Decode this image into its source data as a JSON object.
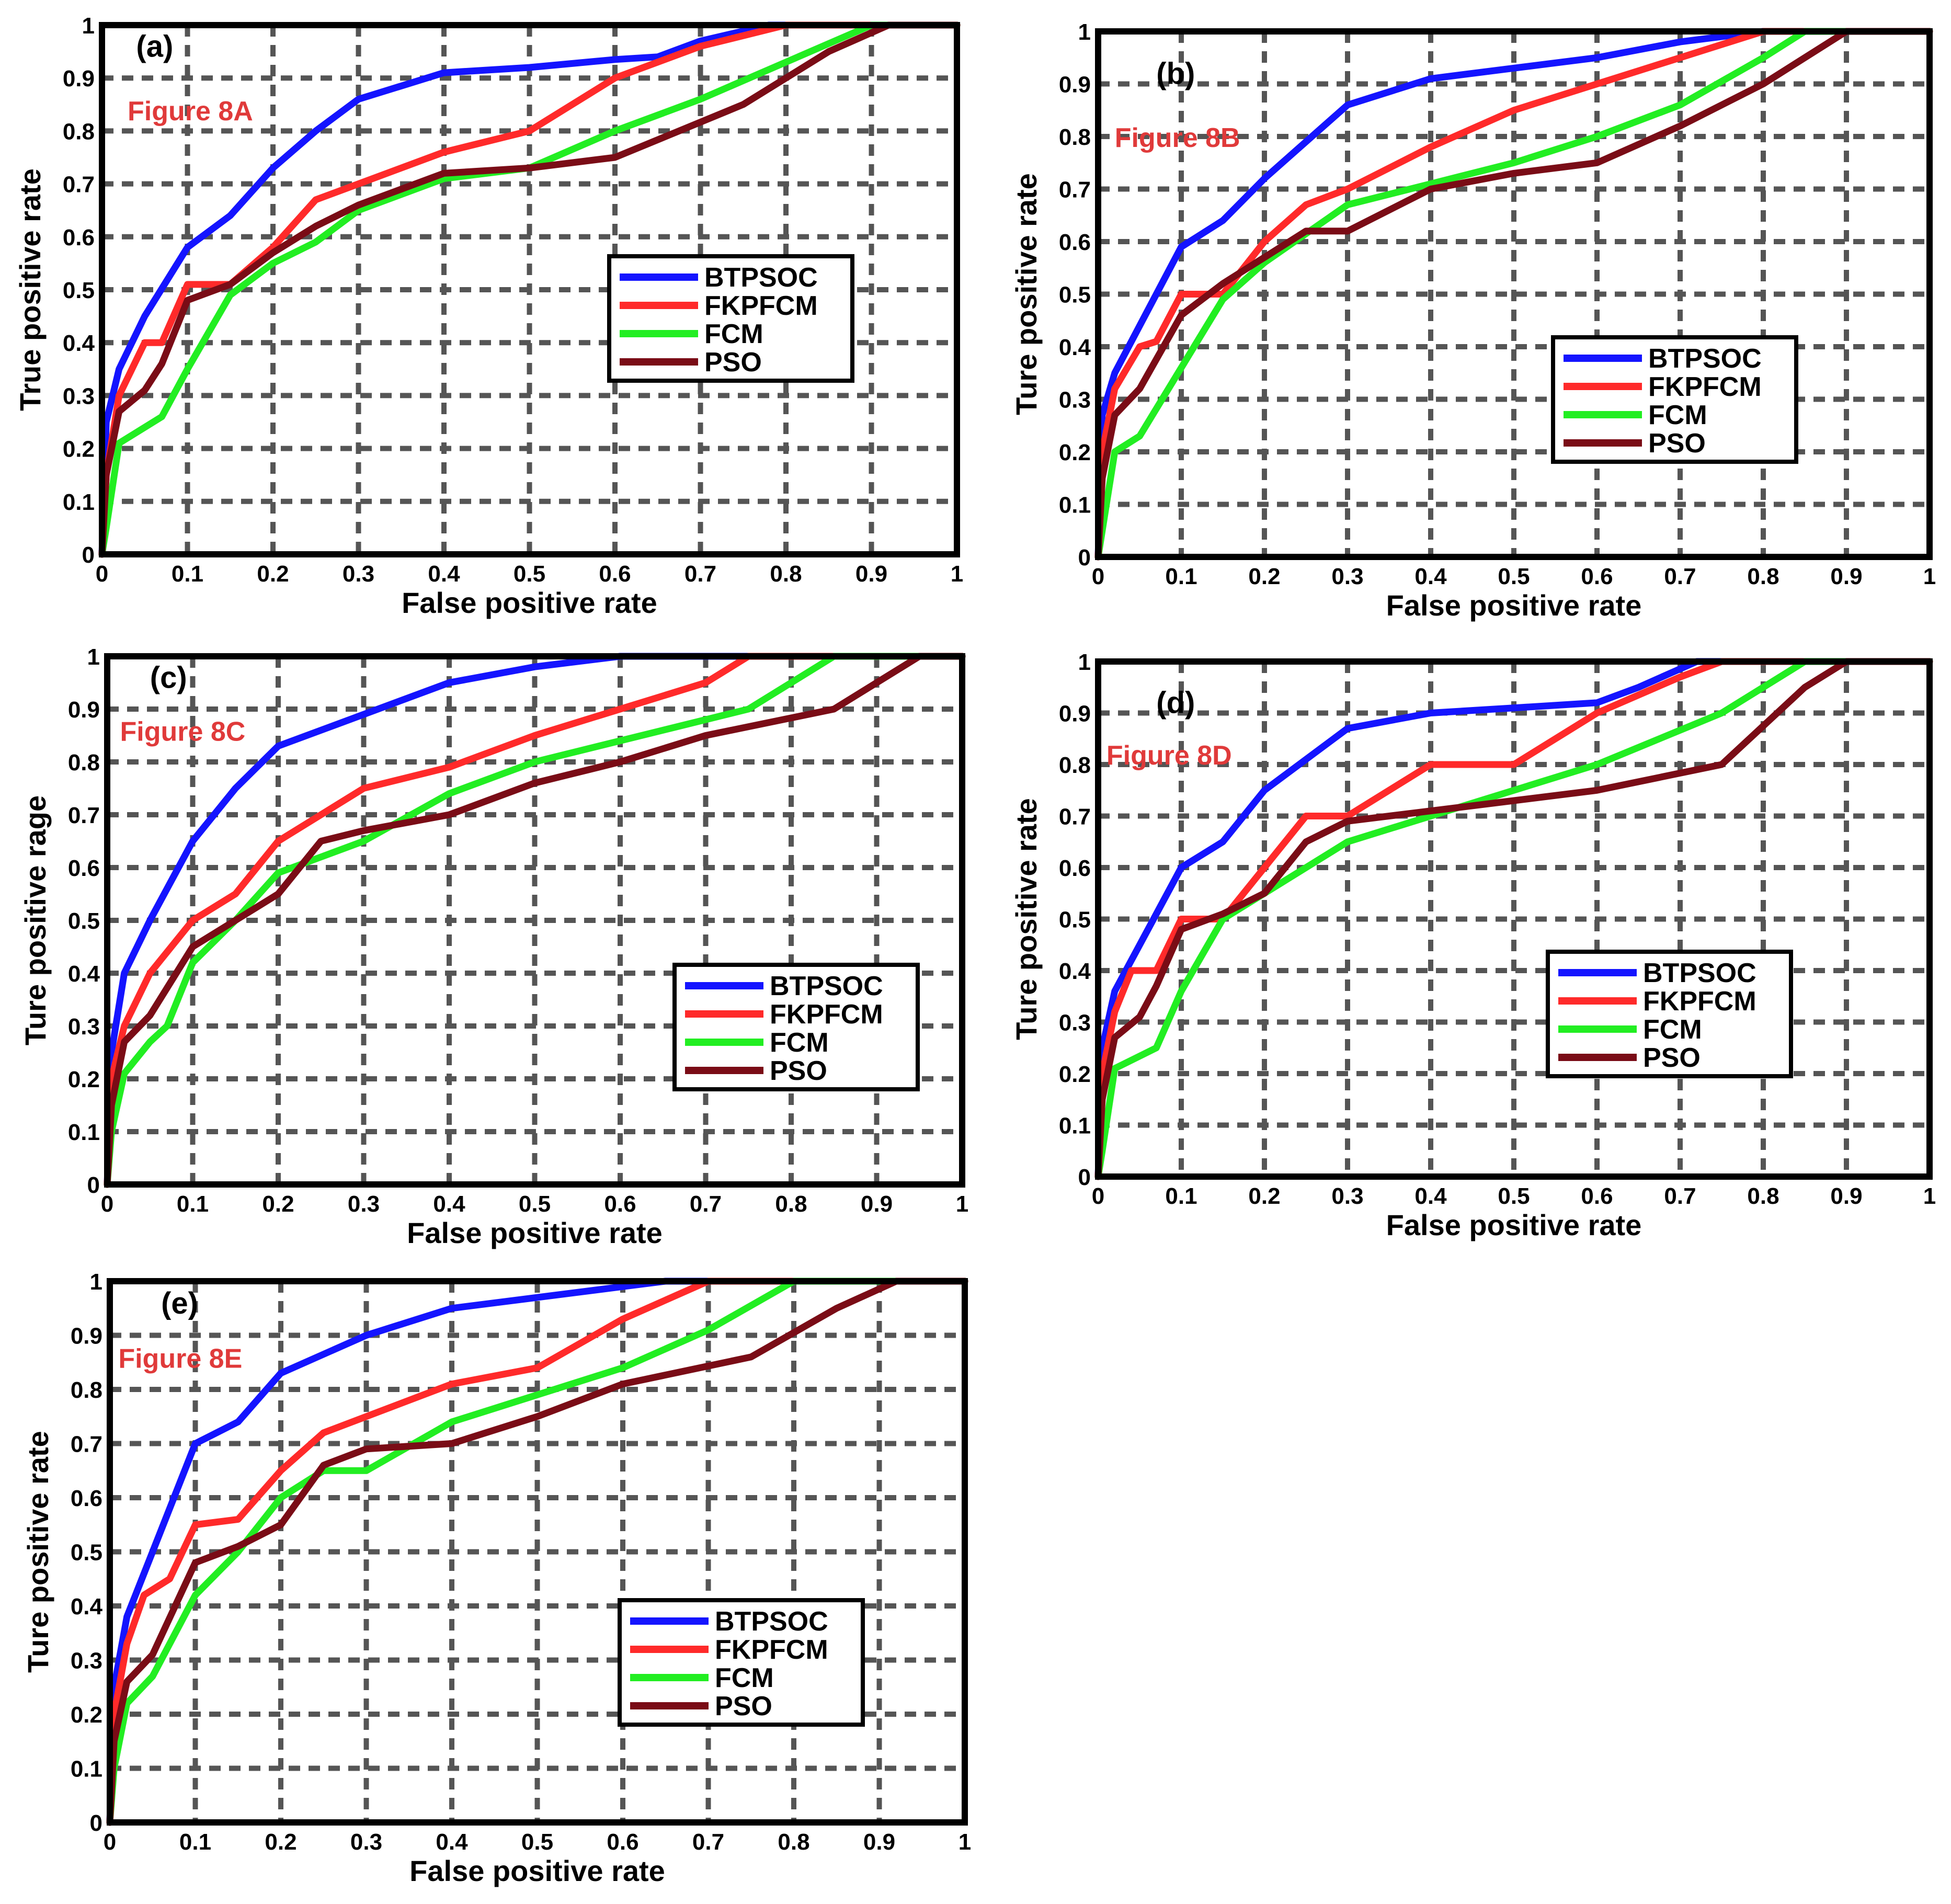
{
  "colors": {
    "BTPSOC": "#1414ff",
    "FKPFCM": "#ff2a2a",
    "FCM": "#22ee22",
    "PSO": "#7a0c16",
    "figure_label": "#e03a3a"
  },
  "chart_data": [
    {
      "type": "line",
      "panel": "(a)",
      "figure_label": "Figure 8A",
      "xlabel": "False positive rate",
      "ylabel": "True positive rate",
      "xlim": [
        0,
        1
      ],
      "ylim": [
        0,
        1
      ],
      "xticks": [
        "0",
        "0.1",
        "0.2",
        "0.3",
        "0.4",
        "0.5",
        "0.6",
        "0.7",
        "0.8",
        "0.9",
        "1"
      ],
      "yticks": [
        "0",
        "0.1",
        "0.2",
        "0.3",
        "0.4",
        "0.5",
        "0.6",
        "0.7",
        "0.8",
        "0.9",
        "1"
      ],
      "grid": true,
      "legend": [
        "BTPSOC",
        "FKPFCM",
        "FCM",
        "PSO"
      ],
      "series": [
        {
          "name": "BTPSOC",
          "x": [
            0,
            0.005,
            0.02,
            0.05,
            0.1,
            0.15,
            0.2,
            0.25,
            0.3,
            0.4,
            0.5,
            0.6,
            0.65,
            0.7,
            0.78,
            1
          ],
          "y": [
            0,
            0.25,
            0.35,
            0.45,
            0.58,
            0.64,
            0.73,
            0.8,
            0.86,
            0.91,
            0.92,
            0.935,
            0.94,
            0.97,
            1,
            1
          ]
        },
        {
          "name": "FKPFCM",
          "x": [
            0,
            0.005,
            0.02,
            0.05,
            0.07,
            0.1,
            0.15,
            0.2,
            0.25,
            0.3,
            0.4,
            0.5,
            0.6,
            0.7,
            0.8,
            1
          ],
          "y": [
            0,
            0.15,
            0.3,
            0.4,
            0.4,
            0.51,
            0.51,
            0.58,
            0.67,
            0.7,
            0.76,
            0.8,
            0.9,
            0.96,
            1,
            1
          ]
        },
        {
          "name": "FCM",
          "x": [
            0,
            0.005,
            0.02,
            0.07,
            0.1,
            0.15,
            0.2,
            0.25,
            0.3,
            0.4,
            0.5,
            0.6,
            0.7,
            0.8,
            0.9,
            1
          ],
          "y": [
            0,
            0.05,
            0.21,
            0.26,
            0.35,
            0.49,
            0.55,
            0.59,
            0.65,
            0.71,
            0.73,
            0.8,
            0.86,
            0.93,
            1,
            1
          ]
        },
        {
          "name": "PSO",
          "x": [
            0,
            0.005,
            0.02,
            0.05,
            0.07,
            0.1,
            0.15,
            0.2,
            0.25,
            0.3,
            0.4,
            0.5,
            0.6,
            0.75,
            0.85,
            0.92,
            1
          ],
          "y": [
            0,
            0.15,
            0.27,
            0.31,
            0.36,
            0.48,
            0.51,
            0.57,
            0.62,
            0.66,
            0.72,
            0.73,
            0.75,
            0.85,
            0.95,
            1,
            1
          ]
        }
      ]
    },
    {
      "type": "line",
      "panel": "(b)",
      "figure_label": "Figure 8B",
      "xlabel": "False positive rate",
      "ylabel": "Ture positive rate",
      "xlim": [
        0,
        1
      ],
      "ylim": [
        0,
        1
      ],
      "xticks": [
        "0",
        "0.1",
        "0.2",
        "0.3",
        "0.4",
        "0.5",
        "0.6",
        "0.7",
        "0.8",
        "0.9",
        "1"
      ],
      "yticks": [
        "0",
        "0.1",
        "0.2",
        "0.3",
        "0.4",
        "0.5",
        "0.6",
        "0.7",
        "0.8",
        "0.9",
        "1"
      ],
      "grid": true,
      "legend": [
        "BTPSOC",
        "FKPFCM",
        "FCM",
        "PSO"
      ],
      "series": [
        {
          "name": "BTPSOC",
          "x": [
            0,
            0.005,
            0.02,
            0.05,
            0.1,
            0.15,
            0.2,
            0.25,
            0.3,
            0.4,
            0.5,
            0.6,
            0.7,
            0.8,
            1
          ],
          "y": [
            0,
            0.27,
            0.35,
            0.44,
            0.59,
            0.64,
            0.72,
            0.79,
            0.86,
            0.91,
            0.93,
            0.95,
            0.98,
            1,
            1
          ]
        },
        {
          "name": "FKPFCM",
          "x": [
            0,
            0.005,
            0.02,
            0.05,
            0.07,
            0.1,
            0.15,
            0.2,
            0.25,
            0.3,
            0.4,
            0.5,
            0.6,
            0.7,
            0.8,
            1
          ],
          "y": [
            0,
            0.2,
            0.32,
            0.4,
            0.41,
            0.5,
            0.5,
            0.6,
            0.67,
            0.7,
            0.78,
            0.85,
            0.9,
            0.95,
            1,
            1
          ]
        },
        {
          "name": "FCM",
          "x": [
            0,
            0.005,
            0.02,
            0.05,
            0.1,
            0.15,
            0.2,
            0.3,
            0.4,
            0.5,
            0.6,
            0.7,
            0.8,
            0.85,
            1
          ],
          "y": [
            0,
            0.05,
            0.2,
            0.23,
            0.36,
            0.49,
            0.56,
            0.67,
            0.71,
            0.75,
            0.8,
            0.86,
            0.95,
            1,
            1
          ]
        },
        {
          "name": "PSO",
          "x": [
            0,
            0.005,
            0.02,
            0.05,
            0.1,
            0.15,
            0.2,
            0.25,
            0.3,
            0.4,
            0.5,
            0.6,
            0.7,
            0.8,
            0.9,
            1
          ],
          "y": [
            0,
            0.15,
            0.27,
            0.32,
            0.46,
            0.52,
            0.57,
            0.62,
            0.62,
            0.7,
            0.73,
            0.75,
            0.82,
            0.9,
            1,
            1
          ]
        }
      ]
    },
    {
      "type": "line",
      "panel": "(c)",
      "figure_label": "Figure 8C",
      "xlabel": "False positive rate",
      "ylabel": "Ture positive rage",
      "xlim": [
        0,
        1
      ],
      "ylim": [
        0,
        1
      ],
      "xticks": [
        "0",
        "0.1",
        "0.2",
        "0.3",
        "0.4",
        "0.5",
        "0.6",
        "0.7",
        "0.8",
        "0.9",
        "1"
      ],
      "yticks": [
        "0",
        "0.1",
        "0.2",
        "0.3",
        "0.4",
        "0.5",
        "0.6",
        "0.7",
        "0.8",
        "0.9",
        "1"
      ],
      "grid": true,
      "legend": [
        "BTPSOC",
        "FKPFCM",
        "FCM",
        "PSO"
      ],
      "series": [
        {
          "name": "BTPSOC",
          "x": [
            0,
            0.005,
            0.02,
            0.05,
            0.1,
            0.15,
            0.2,
            0.3,
            0.4,
            0.5,
            0.6,
            1
          ],
          "y": [
            0,
            0.25,
            0.4,
            0.5,
            0.65,
            0.75,
            0.83,
            0.89,
            0.95,
            0.98,
            1,
            1
          ]
        },
        {
          "name": "FKPFCM",
          "x": [
            0,
            0.005,
            0.02,
            0.05,
            0.1,
            0.15,
            0.2,
            0.25,
            0.3,
            0.4,
            0.5,
            0.6,
            0.7,
            0.75,
            1
          ],
          "y": [
            0,
            0.2,
            0.3,
            0.4,
            0.5,
            0.55,
            0.65,
            0.7,
            0.75,
            0.79,
            0.85,
            0.9,
            0.95,
            1,
            1
          ]
        },
        {
          "name": "FCM",
          "x": [
            0,
            0.005,
            0.02,
            0.05,
            0.07,
            0.1,
            0.15,
            0.2,
            0.25,
            0.3,
            0.4,
            0.5,
            0.6,
            0.75,
            0.85,
            1
          ],
          "y": [
            0,
            0.1,
            0.21,
            0.27,
            0.3,
            0.42,
            0.5,
            0.59,
            0.62,
            0.65,
            0.74,
            0.8,
            0.84,
            0.9,
            1,
            1
          ]
        },
        {
          "name": "PSO",
          "x": [
            0,
            0.005,
            0.02,
            0.05,
            0.1,
            0.15,
            0.2,
            0.25,
            0.3,
            0.4,
            0.5,
            0.6,
            0.7,
            0.85,
            0.95,
            1
          ],
          "y": [
            0,
            0.15,
            0.27,
            0.32,
            0.45,
            0.5,
            0.55,
            0.65,
            0.67,
            0.7,
            0.76,
            0.8,
            0.85,
            0.9,
            1,
            1
          ]
        }
      ]
    },
    {
      "type": "line",
      "panel": "(d)",
      "figure_label": "Figure 8D",
      "xlabel": "False positive rate",
      "ylabel": "Ture positive rate",
      "xlim": [
        0,
        1
      ],
      "ylim": [
        0,
        1
      ],
      "xticks": [
        "0",
        "0.1",
        "0.2",
        "0.3",
        "0.4",
        "0.5",
        "0.6",
        "0.7",
        "0.8",
        "0.9",
        "1"
      ],
      "yticks": [
        "0",
        "0.1",
        "0.2",
        "0.3",
        "0.4",
        "0.5",
        "0.6",
        "0.7",
        "0.8",
        "0.9",
        "1"
      ],
      "grid": true,
      "legend": [
        "BTPSOC",
        "FKPFCM",
        "FCM",
        "PSO"
      ],
      "series": [
        {
          "name": "BTPSOC",
          "x": [
            0,
            0.005,
            0.02,
            0.05,
            0.1,
            0.15,
            0.2,
            0.25,
            0.3,
            0.4,
            0.5,
            0.6,
            0.65,
            0.72,
            1
          ],
          "y": [
            0,
            0.25,
            0.36,
            0.45,
            0.6,
            0.65,
            0.75,
            0.81,
            0.87,
            0.9,
            0.91,
            0.92,
            0.95,
            1,
            1
          ]
        },
        {
          "name": "FKPFCM",
          "x": [
            0,
            0.005,
            0.02,
            0.04,
            0.07,
            0.1,
            0.15,
            0.2,
            0.25,
            0.3,
            0.4,
            0.5,
            0.6,
            0.7,
            0.75,
            1
          ],
          "y": [
            0,
            0.2,
            0.32,
            0.4,
            0.4,
            0.5,
            0.5,
            0.6,
            0.7,
            0.7,
            0.8,
            0.8,
            0.9,
            0.97,
            1,
            1
          ]
        },
        {
          "name": "FCM",
          "x": [
            0,
            0.005,
            0.02,
            0.07,
            0.1,
            0.15,
            0.2,
            0.3,
            0.4,
            0.5,
            0.6,
            0.75,
            0.85,
            1
          ],
          "y": [
            0,
            0.05,
            0.21,
            0.25,
            0.36,
            0.5,
            0.55,
            0.65,
            0.7,
            0.75,
            0.8,
            0.9,
            1,
            1
          ]
        },
        {
          "name": "PSO",
          "x": [
            0,
            0.005,
            0.02,
            0.05,
            0.07,
            0.1,
            0.15,
            0.2,
            0.25,
            0.3,
            0.4,
            0.5,
            0.6,
            0.75,
            0.85,
            0.9,
            1
          ],
          "y": [
            0,
            0.15,
            0.27,
            0.31,
            0.37,
            0.48,
            0.51,
            0.55,
            0.65,
            0.69,
            0.71,
            0.73,
            0.75,
            0.8,
            0.95,
            1,
            1
          ]
        }
      ]
    },
    {
      "type": "line",
      "panel": "(e)",
      "figure_label": "Figure 8E",
      "xlabel": "False positive rate",
      "ylabel": "Ture positive rate",
      "xlim": [
        0,
        1
      ],
      "ylim": [
        0,
        1
      ],
      "xticks": [
        "0",
        "0.1",
        "0.2",
        "0.3",
        "0.4",
        "0.5",
        "0.6",
        "0.7",
        "0.8",
        "0.9",
        "1"
      ],
      "yticks": [
        "0",
        "0.1",
        "0.2",
        "0.3",
        "0.4",
        "0.5",
        "0.6",
        "0.7",
        "0.8",
        "0.9",
        "1"
      ],
      "grid": true,
      "legend": [
        "BTPSOC",
        "FKPFCM",
        "FCM",
        "PSO"
      ],
      "series": [
        {
          "name": "BTPSOC",
          "x": [
            0,
            0.005,
            0.02,
            0.05,
            0.1,
            0.15,
            0.2,
            0.3,
            0.4,
            0.5,
            0.6,
            0.65,
            1
          ],
          "y": [
            0,
            0.25,
            0.38,
            0.5,
            0.7,
            0.74,
            0.83,
            0.9,
            0.95,
            0.97,
            0.99,
            1,
            1
          ]
        },
        {
          "name": "FKPFCM",
          "x": [
            0,
            0.005,
            0.02,
            0.04,
            0.07,
            0.1,
            0.15,
            0.2,
            0.25,
            0.3,
            0.4,
            0.5,
            0.6,
            0.7,
            1
          ],
          "y": [
            0,
            0.2,
            0.33,
            0.42,
            0.45,
            0.55,
            0.56,
            0.65,
            0.72,
            0.75,
            0.81,
            0.84,
            0.93,
            1,
            1
          ]
        },
        {
          "name": "FCM",
          "x": [
            0,
            0.005,
            0.02,
            0.05,
            0.1,
            0.15,
            0.2,
            0.25,
            0.3,
            0.4,
            0.5,
            0.6,
            0.7,
            0.8,
            1
          ],
          "y": [
            0,
            0.1,
            0.22,
            0.27,
            0.42,
            0.5,
            0.6,
            0.65,
            0.65,
            0.74,
            0.79,
            0.84,
            0.91,
            1,
            1
          ]
        },
        {
          "name": "PSO",
          "x": [
            0,
            0.005,
            0.02,
            0.05,
            0.1,
            0.15,
            0.2,
            0.25,
            0.3,
            0.4,
            0.5,
            0.6,
            0.75,
            0.85,
            0.92,
            1
          ],
          "y": [
            0,
            0.15,
            0.26,
            0.31,
            0.48,
            0.51,
            0.55,
            0.66,
            0.69,
            0.7,
            0.75,
            0.81,
            0.86,
            0.95,
            1,
            1
          ]
        }
      ]
    }
  ]
}
